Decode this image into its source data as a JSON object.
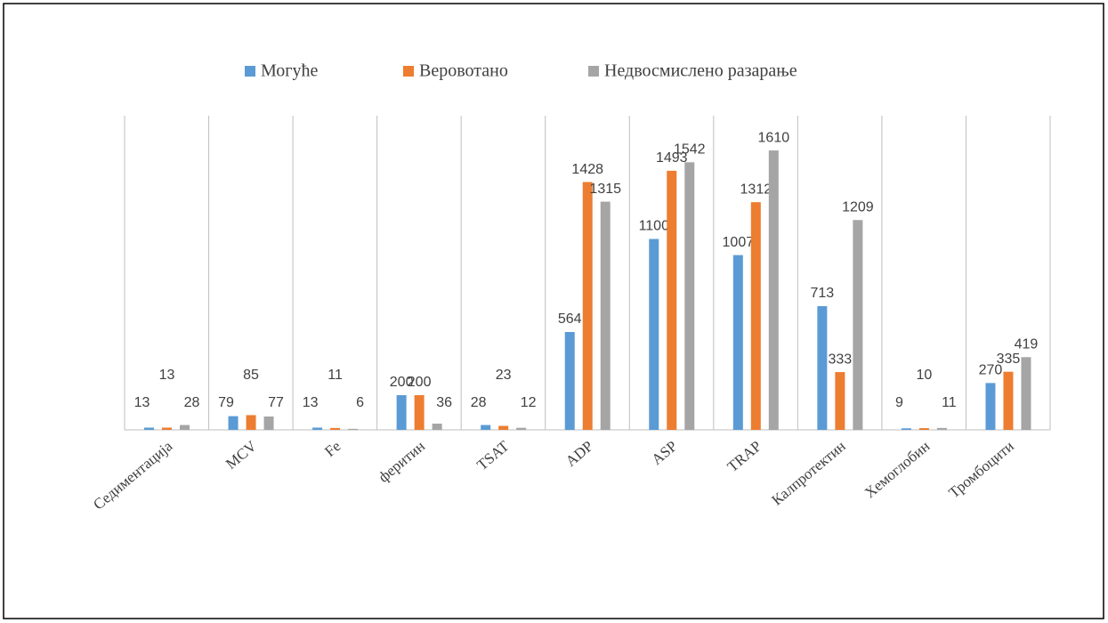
{
  "chart_data": {
    "type": "bar",
    "categories": [
      "Седиментација",
      "MCV",
      "Fe",
      "феритин",
      "TSAT",
      "ADP",
      "ASP",
      "TRAP",
      "Калпротектин",
      "Хемоглобин",
      "Тромбоцити"
    ],
    "series": [
      {
        "name": "Могуће",
        "color": "#5b9bd5",
        "values": [
          13,
          79,
          13,
          200,
          28,
          564,
          1100,
          1007,
          713,
          9,
          270
        ]
      },
      {
        "name": "Веровотано",
        "color": "#ed7d31",
        "values": [
          13,
          85,
          11,
          200,
          23,
          1428,
          1493,
          1312,
          333,
          10,
          335
        ]
      },
      {
        "name": "Недвосмислено разарање",
        "color": "#a5a5a5",
        "values": [
          28,
          77,
          6,
          36,
          12,
          1315,
          1542,
          1610,
          1209,
          11,
          419
        ]
      }
    ]
  }
}
